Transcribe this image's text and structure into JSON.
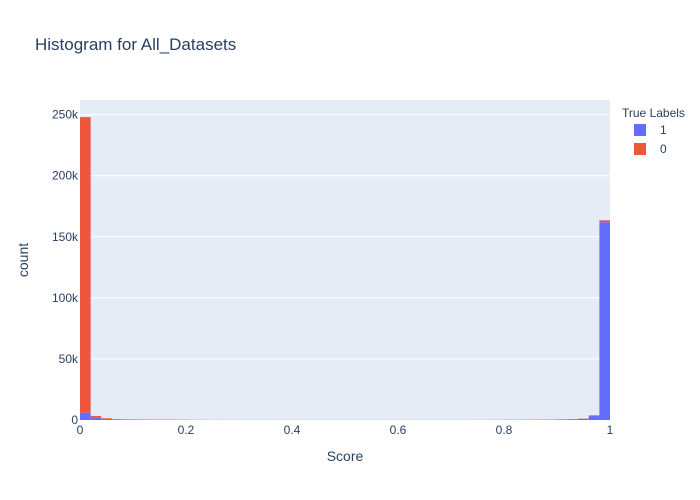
{
  "chart_data": {
    "type": "bar",
    "mode": "stacked-histogram",
    "title": "Histogram for All_Datasets",
    "xlabel": "Score",
    "ylabel": "count",
    "xlim": [
      0,
      1
    ],
    "ylim": [
      0,
      262000
    ],
    "x_ticks": [
      {
        "value": 0,
        "label": "0"
      },
      {
        "value": 0.2,
        "label": "0.2"
      },
      {
        "value": 0.4,
        "label": "0.4"
      },
      {
        "value": 0.6,
        "label": "0.6"
      },
      {
        "value": 0.8,
        "label": "0.8"
      },
      {
        "value": 1,
        "label": "1"
      }
    ],
    "y_ticks": [
      {
        "value": 0,
        "label": "0"
      },
      {
        "value": 50000,
        "label": "50k"
      },
      {
        "value": 100000,
        "label": "100k"
      },
      {
        "value": 150000,
        "label": "150k"
      },
      {
        "value": 200000,
        "label": "200k"
      },
      {
        "value": 250000,
        "label": "250k"
      }
    ],
    "bin_width": 0.02,
    "bins": [
      0.0,
      0.02,
      0.04,
      0.06,
      0.08,
      0.1,
      0.12,
      0.14,
      0.16,
      0.18,
      0.2,
      0.22,
      0.24,
      0.26,
      0.28,
      0.3,
      0.32,
      0.34,
      0.36,
      0.38,
      0.4,
      0.42,
      0.44,
      0.46,
      0.48,
      0.5,
      0.52,
      0.54,
      0.56,
      0.58,
      0.6,
      0.62,
      0.64,
      0.66,
      0.68,
      0.7,
      0.72,
      0.74,
      0.76,
      0.78,
      0.8,
      0.82,
      0.84,
      0.86,
      0.88,
      0.9,
      0.92,
      0.94,
      0.96,
      0.98
    ],
    "series": [
      {
        "name": "1",
        "color": "#636efa",
        "values": [
          6000,
          1800,
          800,
          300,
          200,
          150,
          100,
          100,
          80,
          80,
          60,
          50,
          50,
          40,
          40,
          40,
          40,
          40,
          40,
          40,
          40,
          40,
          40,
          40,
          40,
          40,
          40,
          40,
          40,
          40,
          40,
          40,
          40,
          40,
          50,
          50,
          50,
          60,
          60,
          80,
          100,
          150,
          200,
          250,
          300,
          400,
          600,
          1000,
          3500,
          162000
        ]
      },
      {
        "name": "0",
        "color": "#ef553b",
        "values": [
          242000,
          1500,
          600,
          400,
          400,
          350,
          300,
          300,
          250,
          200,
          100,
          80,
          60,
          50,
          50,
          40,
          40,
          40,
          40,
          40,
          40,
          40,
          40,
          40,
          40,
          40,
          40,
          40,
          40,
          40,
          40,
          40,
          40,
          40,
          40,
          40,
          40,
          50,
          50,
          60,
          200,
          150,
          120,
          100,
          100,
          100,
          150,
          200,
          400,
          1500
        ]
      }
    ],
    "legend": {
      "title": "True Labels",
      "placement": "top-right"
    },
    "grid": true,
    "colors": {
      "plot_bg": "#e5ecf6",
      "grid": "#ffffff",
      "text": "#2a3f5f"
    }
  }
}
